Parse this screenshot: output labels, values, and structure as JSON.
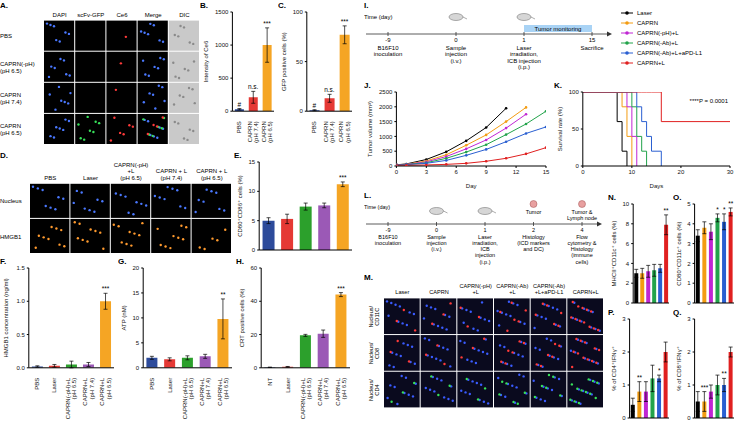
{
  "microscopy": [
    {
      "panel": "A.",
      "columns": [
        "DAPI",
        "scFv-GFP",
        "Ce6",
        "Merge",
        "DIC"
      ],
      "rows": [
        "PBS",
        "CAPRN(-pH) (pH 6.5)",
        "CAPRN (pH 7.4)",
        "CAPRN (pH 6.5)"
      ]
    },
    {
      "panel": "D.",
      "columns": [
        "PBS",
        "Laser",
        "CAPRN(-pH)+L (pH 6.5)",
        "CAPRN + L (pH 7.4)",
        "CAPRN + L (pH 6.5)"
      ],
      "rows": [
        "Nucleus",
        "HMGB1"
      ]
    },
    {
      "panel": "M.",
      "columns": [
        "Laser",
        "CAPRN",
        "CAPRN(-pH)+L",
        "CAPRN(-Ab)+L",
        "CAPRN(-Ab)+L+aPD-L1",
        "CAPRN+L"
      ],
      "rows": [
        "Nucleus/CD11C",
        "Nucleus/CD8",
        "Nucleus/CD4"
      ]
    }
  ],
  "schemes": [
    {
      "panel": "I.",
      "time_label": "Time (day)",
      "days": [
        -9,
        0,
        1,
        15
      ],
      "events": [
        "B16F10 inoculation",
        "Sample injection (i.v.)",
        "Laser irradiation, ICB injection (i.p.)",
        "Sacrifice"
      ],
      "span_label": "Tumor monitoring"
    },
    {
      "panel": "L.",
      "time_label": "Time (day)",
      "days": [
        -9,
        0,
        1,
        2,
        4
      ],
      "events": [
        "B16F10 inoculation",
        "Sample injection (i.v.)",
        "Laser irradiation, ICB injection (i.p.)",
        "Histology (ICD markers and DC)",
        "Flow cytometry & Histology (immune cells)"
      ],
      "icons": [
        {
          "day": 2,
          "label": "Tumor"
        },
        {
          "day": 4,
          "label": "Tumor & Lymph node"
        }
      ]
    }
  ],
  "chart_data": [
    {
      "panel": "B.",
      "type": "bar",
      "y_label": "Intensity of Ce6",
      "categories": [
        "PBS",
        "CAPRN (pH 7.4)",
        "CAPRN (pH 6.5)"
      ],
      "values": [
        30,
        210,
        1000
      ],
      "errors": [
        10,
        90,
        260
      ],
      "colors": [
        "#2d4b9b",
        "#e53935",
        "#f5a524"
      ],
      "ylim": [
        0,
        1500
      ],
      "yticks": [
        0,
        500,
        1000,
        1500
      ],
      "annotations": [
        {
          "text": "#",
          "category": "PBS"
        },
        {
          "text": "n.s.",
          "category": "CAPRN (pH 7.4)"
        },
        {
          "text": "***",
          "category": "CAPRN (pH 6.5)"
        }
      ]
    },
    {
      "panel": "C.",
      "type": "bar",
      "y_label": "GFP positive cells (%)",
      "categories": [
        "PBS",
        "CAPRN (pH 7.4)",
        "CAPRN (pH 6.5)"
      ],
      "values": [
        1,
        13,
        77
      ],
      "errors": [
        0.5,
        4,
        9
      ],
      "colors": [
        "#2d4b9b",
        "#e53935",
        "#f5a524"
      ],
      "ylim": [
        0,
        100
      ],
      "yticks": [
        0,
        50,
        100
      ],
      "annotations": [
        {
          "text": "#",
          "category": "PBS"
        },
        {
          "text": "n.s.",
          "category": "CAPRN (pH 7.4)"
        },
        {
          "text": "***",
          "category": "CAPRN (pH 6.5)"
        }
      ]
    },
    {
      "panel": "E.",
      "type": "bar",
      "y_label": "CD80⁺CD86⁺ cells (%)",
      "categories": [
        "PBS",
        "Laser",
        "CAPRN(-pH)+L (pH 6.5)",
        "CAPRN + L (pH 7.4)",
        "CAPRN + L (pH 6.5)"
      ],
      "values": [
        5,
        5.3,
        7.4,
        7.6,
        11.2
      ],
      "errors": [
        0.5,
        0.8,
        0.6,
        0.4,
        0.4
      ],
      "colors": [
        "#2d4b9b",
        "#e53935",
        "#2ca02c",
        "#9b59b6",
        "#f5a524"
      ],
      "ylim": [
        0,
        15
      ],
      "yticks": [
        0,
        5,
        10,
        15
      ],
      "tick_labels": "y",
      "annotations": [
        {
          "text": "***",
          "category": "CAPRN + L (pH 6.5)"
        }
      ]
    },
    {
      "panel": "F.",
      "type": "bar",
      "y_label": "HMGB1 concentration (ng/ml)",
      "categories": [
        "PBS",
        "Laser",
        "CAPRN(-pH)+L (pH 6.5)",
        "CAPRN+L (pH 7.4)",
        "CAPRN+L (pH 6.5)"
      ],
      "values": [
        0.02,
        0.03,
        0.05,
        0.05,
        1.0
      ],
      "errors": [
        0.01,
        0.02,
        0.05,
        0.03,
        0.12
      ],
      "colors": [
        "#2d4b9b",
        "#e53935",
        "#2ca02c",
        "#9b59b6",
        "#f5a524"
      ],
      "ylim": [
        0,
        1.5
      ],
      "yticks": [
        {
          "value": 0,
          "label": "0.0"
        },
        0.5,
        {
          "value": 1,
          "label": "1.0"
        },
        1.5
      ],
      "annotations": [
        {
          "text": "***",
          "category": "CAPRN+L (pH 6.5)"
        }
      ]
    },
    {
      "panel": "G.",
      "type": "bar",
      "y_label": "ATP (nM)",
      "categories": [
        "PBS",
        "Laser",
        "CAPRN(-pH)+L (pH 6.5)",
        "CAPRN+L (pH 7.4)",
        "CAPRN+L (pH 6.5)"
      ],
      "values": [
        2.0,
        1.7,
        2.0,
        2.3,
        9.8
      ],
      "errors": [
        0.3,
        0.3,
        0.4,
        0.4,
        4.0
      ],
      "colors": [
        "#2d4b9b",
        "#e53935",
        "#2ca02c",
        "#9b59b6",
        "#f5a524"
      ],
      "ylim": [
        0,
        20
      ],
      "yticks": [
        0,
        5,
        10,
        15,
        20
      ],
      "annotations": [
        {
          "text": "**",
          "category": "CAPRN+L (pH 6.5)"
        }
      ]
    },
    {
      "panel": "H.",
      "type": "bar",
      "y_label": "CRT positive cells (%)",
      "categories": [
        "NT",
        "Laser",
        "CAPRN(-pH)+L (pH 6.5)",
        "CAPRN+L (pH 7.4)",
        "CAPRN+L (pH 6.5)"
      ],
      "values": [
        0.3,
        0.6,
        19.5,
        20.5,
        44
      ],
      "errors": [
        0.1,
        0.2,
        0.6,
        2.2,
        1.2
      ],
      "colors": [
        "#2d4b9b",
        "#e53935",
        "#2ca02c",
        "#9b59b6",
        "#f5a524"
      ],
      "ylim": [
        0,
        60
      ],
      "yticks": [
        0,
        20,
        40,
        60
      ],
      "annotations": [
        {
          "text": "***",
          "category": "CAPRN+L (pH 6.5)"
        }
      ]
    },
    {
      "panel": "J.",
      "type": "line",
      "x_label": "Day",
      "y_label": "Tumor volume (mm³)",
      "x": [
        0,
        1,
        3,
        5,
        7,
        9,
        11,
        13,
        15
      ],
      "series": [
        {
          "name": "Laser",
          "color": "#000000",
          "values": [
            40,
            70,
            220,
            480,
            850,
            1300,
            1950,
            null,
            null
          ]
        },
        {
          "name": "CAPRN",
          "color": "#f39c12",
          "values": [
            40,
            60,
            170,
            380,
            700,
            1050,
            1500,
            1980,
            null
          ]
        },
        {
          "name": "CAPRN(-pH)+L",
          "color": "#c026d3",
          "values": [
            40,
            55,
            140,
            320,
            580,
            880,
            1280,
            1750,
            null
          ]
        },
        {
          "name": "CAPRN(-Ab)+L",
          "color": "#22a34a",
          "values": [
            40,
            50,
            110,
            260,
            470,
            720,
            1060,
            1420,
            1850
          ]
        },
        {
          "name": "CAPRN(-Ab)+L+aPD-L1",
          "color": "#2a5fd1",
          "values": [
            40,
            45,
            90,
            190,
            360,
            560,
            820,
            1100,
            1320
          ]
        },
        {
          "name": "CAPRN+L",
          "color": "#e02020",
          "values": [
            30,
            25,
            35,
            55,
            90,
            160,
            260,
            410,
            620
          ]
        }
      ],
      "xlim": [
        0,
        15
      ],
      "xticks": [
        0,
        3,
        6,
        9,
        12,
        15
      ],
      "ylim": [
        0,
        2500
      ],
      "yticks": [
        0,
        500,
        1000,
        1500,
        2000,
        2500
      ],
      "marker": "circle",
      "legend": "top right"
    },
    {
      "panel": "K.",
      "type": "line",
      "line_style": "step",
      "x_label": "Days",
      "y_label": "Survival rate (%)",
      "x": [
        0,
        6,
        7,
        8,
        9,
        10,
        11,
        12,
        13,
        14,
        16,
        30
      ],
      "series": [
        {
          "name": "Laser",
          "color": "#000000",
          "values": [
            100,
            100,
            60,
            20,
            0,
            null,
            null,
            null,
            null,
            null,
            null,
            null
          ]
        },
        {
          "name": "CAPRN",
          "color": "#f39c12",
          "values": [
            100,
            100,
            100,
            80,
            40,
            0,
            null,
            null,
            null,
            null,
            null,
            null
          ]
        },
        {
          "name": "CAPRN(-pH)+L",
          "color": "#c026d3",
          "values": [
            100,
            100,
            100,
            100,
            80,
            40,
            0,
            null,
            null,
            null,
            null,
            null
          ]
        },
        {
          "name": "CAPRN(-Ab)+L",
          "color": "#22a34a",
          "values": [
            100,
            100,
            100,
            100,
            100,
            80,
            40,
            20,
            0,
            null,
            null,
            null
          ]
        },
        {
          "name": "CAPRN(-Ab)+L+aPD-L1",
          "color": "#2a5fd1",
          "values": [
            100,
            100,
            100,
            100,
            100,
            100,
            80,
            60,
            40,
            20,
            0,
            null
          ]
        },
        {
          "name": "CAPRN+L",
          "color": "#e02020",
          "values": [
            100,
            100,
            100,
            100,
            100,
            100,
            100,
            100,
            100,
            100,
            60,
            60
          ]
        }
      ],
      "xlim": [
        0,
        30
      ],
      "xticks": [
        0,
        10,
        20,
        30
      ],
      "ylim": [
        0,
        100
      ],
      "yticks": [
        0,
        50,
        100
      ],
      "annotations": [
        {
          "text": "****P = 0.0001"
        }
      ]
    },
    {
      "panel": "N.",
      "type": "bar",
      "y_label": "MHCII⁺CD11c⁺ cells (%)",
      "categories": [
        "Laser",
        "CAPRN",
        "CAPRN(-pH)+L",
        "CAPRN(-Ab)+L",
        "CAPRN(-Ab)+L+aPD-L1",
        "CAPRN+L"
      ],
      "values": [
        3.0,
        3.0,
        3.2,
        3.3,
        3.5,
        7.9
      ],
      "errors": [
        0.4,
        0.5,
        0.6,
        0.6,
        0.4,
        1.0
      ],
      "colors": [
        "#000000",
        "#f39c12",
        "#c026d3",
        "#22a34a",
        "#2a5fd1",
        "#e02020"
      ],
      "ylim": [
        0,
        10
      ],
      "yticks": [
        0,
        2,
        4,
        6,
        8,
        10
      ],
      "tick_labels": "y",
      "annotations": [
        {
          "text": "**",
          "category": "CAPRN+L"
        }
      ]
    },
    {
      "panel": "O.",
      "type": "bar",
      "y_label": "CD80⁺CD11c⁺ cells (%)",
      "categories": [
        "Laser",
        "CAPRN",
        "CAPRN(-pH)+L",
        "CAPRN(-Ab)+L",
        "CAPRN(-Ab)+L+aPD-L1",
        "CAPRN+L"
      ],
      "values": [
        3.4,
        3.8,
        3.6,
        4.3,
        4.1,
        4.6
      ],
      "errors": [
        0.3,
        0.3,
        0.4,
        0.2,
        0.4,
        0.2
      ],
      "colors": [
        "#000000",
        "#f39c12",
        "#c026d3",
        "#22a34a",
        "#2a5fd1",
        "#e02020"
      ],
      "ylim": [
        0,
        5
      ],
      "yticks": [
        0,
        1,
        2,
        3,
        4,
        5
      ],
      "tick_labels": "y",
      "annotations": [
        {
          "text": "*",
          "category": "CAPRN(-Ab)+L"
        },
        {
          "text": "*",
          "category": "CAPRN(-Ab)+L+aPD-L1"
        },
        {
          "text": "**",
          "category": "CAPRN+L"
        }
      ]
    },
    {
      "panel": "P.",
      "type": "bar",
      "y_label": "% of CD4⁺IFNγ⁺",
      "categories": [
        "Laser",
        "CAPRN",
        "CAPRN(-pH)+L",
        "CAPRN(-Ab)+L",
        "CAPRN(-Ab)+L+aPD-L1",
        "CAPRN+L"
      ],
      "values": [
        0.4,
        0.8,
        0.8,
        1.2,
        1.2,
        2.0
      ],
      "errors": [
        0.2,
        0.3,
        0.3,
        0.4,
        0.1,
        0.3
      ],
      "colors": [
        "#000000",
        "#f39c12",
        "#c026d3",
        "#22a34a",
        "#2a5fd1",
        "#e02020"
      ],
      "ylim": [
        0,
        3
      ],
      "yticks": [
        0,
        1,
        2,
        3
      ],
      "tick_labels": "y",
      "annotations": [
        {
          "text": "**",
          "category": "CAPRN"
        },
        {
          "text": "*",
          "category": "CAPRN(-Ab)+L+aPD-L1"
        }
      ]
    },
    {
      "panel": "Q.",
      "type": "bar",
      "y_label": "% of CD8⁺IFNγ⁺",
      "categories": [
        "Laser",
        "CAPRN",
        "CAPRN(-pH)+L",
        "CAPRN(-Ab)+L",
        "CAPRN(-Ab)+L+aPD-L1",
        "CAPRN+L"
      ],
      "values": [
        0.5,
        0.5,
        0.8,
        1.0,
        1.0,
        2.0
      ],
      "errors": [
        0.3,
        0.3,
        0.2,
        0.3,
        0.2,
        0.15
      ],
      "colors": [
        "#000000",
        "#f39c12",
        "#c026d3",
        "#22a34a",
        "#2a5fd1",
        "#e02020"
      ],
      "ylim": [
        0,
        3
      ],
      "yticks": [
        0,
        1,
        2,
        3
      ],
      "tick_labels": "y",
      "annotations": [
        {
          "text": "***",
          "category": "CAPRN"
        },
        {
          "text": "**",
          "category": "CAPRN(-Ab)+L+aPD-L1"
        }
      ]
    }
  ]
}
